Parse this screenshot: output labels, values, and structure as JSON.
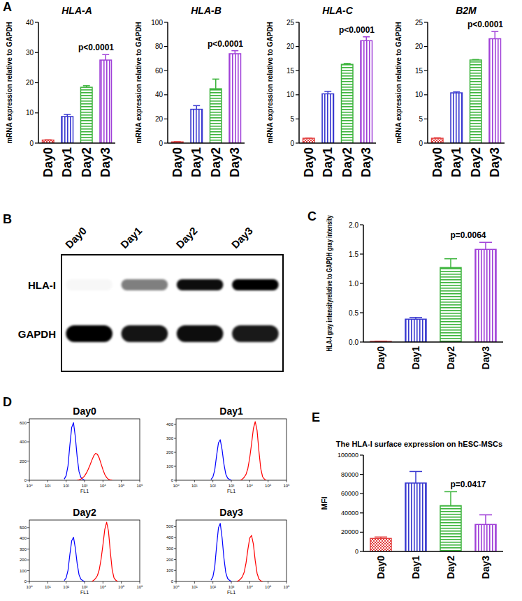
{
  "panel_labels": [
    "A",
    "B",
    "C",
    "D",
    "E"
  ],
  "blot": {
    "lanes": [
      "Day0",
      "Day1",
      "Day2",
      "Day3"
    ],
    "rows": [
      {
        "label": "HLA-I",
        "intensity": [
          0.03,
          0.5,
          0.95,
          1.0
        ]
      },
      {
        "label": "GAPDH",
        "intensity": [
          1.0,
          0.92,
          0.95,
          0.9
        ]
      }
    ]
  },
  "chart_data": [
    {
      "type": "bar",
      "title": "HLA-A",
      "ylabel": "mRNA expression relative to GAPDH",
      "categories": [
        "Day0",
        "Day1",
        "Day2",
        "Day3"
      ],
      "values": [
        1,
        8.8,
        18.5,
        27.5
      ],
      "errors": [
        0.1,
        0.7,
        0.5,
        1.8
      ],
      "colors": [
        "#e34040",
        "#3a3ad0",
        "#3cb43c",
        "#a040d8"
      ],
      "ylim": [
        0,
        40
      ],
      "yticks": [
        0,
        10,
        20,
        30,
        40
      ],
      "grid": false,
      "annotations": [
        "p<0.0001"
      ]
    },
    {
      "type": "bar",
      "title": "HLA-B",
      "ylabel": "mRNA expression relative to GAPDH",
      "categories": [
        "Day0",
        "Day1",
        "Day2",
        "Day3"
      ],
      "values": [
        1,
        28,
        45,
        74
      ],
      "errors": [
        0.2,
        3,
        8,
        2.5
      ],
      "colors": [
        "#e34040",
        "#3a3ad0",
        "#3cb43c",
        "#a040d8"
      ],
      "ylim": [
        0,
        100
      ],
      "yticks": [
        0,
        20,
        40,
        60,
        80,
        100
      ],
      "grid": false,
      "annotations": [
        "p<0.0001"
      ]
    },
    {
      "type": "bar",
      "title": "HLA-C",
      "ylabel": "mRNA expression relative to GAPDH",
      "categories": [
        "Day0",
        "Day1",
        "Day2",
        "Day3"
      ],
      "values": [
        1,
        10.2,
        16.3,
        21.2
      ],
      "errors": [
        0.05,
        0.5,
        0.2,
        0.8
      ],
      "colors": [
        "#e34040",
        "#3a3ad0",
        "#3cb43c",
        "#a040d8"
      ],
      "ylim": [
        0,
        25
      ],
      "yticks": [
        0,
        5,
        10,
        15,
        20,
        25
      ],
      "grid": false,
      "annotations": [
        "p<0.0001"
      ]
    },
    {
      "type": "bar",
      "title": "B2M",
      "ylabel": "mRNA expression relative to GAPDH",
      "categories": [
        "Day0",
        "Day1",
        "Day2",
        "Day3"
      ],
      "values": [
        1,
        10.4,
        17.2,
        21.6
      ],
      "errors": [
        0.1,
        0.2,
        0.1,
        1.5
      ],
      "colors": [
        "#e34040",
        "#3a3ad0",
        "#3cb43c",
        "#a040d8"
      ],
      "ylim": [
        0,
        25
      ],
      "yticks": [
        0,
        5,
        10,
        15,
        20,
        25
      ],
      "grid": false,
      "annotations": [
        "p<0.0001"
      ]
    },
    {
      "type": "bar",
      "ylabel": "HLA-I gray intensityrelative to GAPDH gray intensity",
      "categories": [
        "Day0",
        "Day1",
        "Day2",
        "Day3"
      ],
      "values": [
        0.01,
        0.39,
        1.27,
        1.58
      ],
      "errors": [
        0.005,
        0.03,
        0.15,
        0.12
      ],
      "colors": [
        "#e34040",
        "#3a3ad0",
        "#3cb43c",
        "#a040d8"
      ],
      "ylim": [
        0,
        2
      ],
      "yticks": [
        {
          "value": 0,
          "label": "0.0"
        },
        {
          "value": 0.5,
          "label": "0.5"
        },
        {
          "value": 1,
          "label": "1.0"
        },
        {
          "value": 1.5,
          "label": "1.5"
        },
        {
          "value": 2,
          "label": "2.0"
        }
      ],
      "grid": false,
      "annotations": [
        "p=0.0064"
      ]
    },
    {
      "type": "line",
      "title": "Day0",
      "xlabel": "FL1",
      "log": "x",
      "grid": false,
      "xlim": [
        1,
        1000000
      ],
      "xticks": [
        {
          "value": 1,
          "label": "10⁰"
        },
        {
          "value": 10,
          "label": "10¹"
        },
        {
          "value": 100,
          "label": "10²"
        },
        {
          "value": 1000,
          "label": "10³"
        },
        {
          "value": 10000,
          "label": "10⁴"
        },
        {
          "value": 100000,
          "label": "10⁵"
        },
        {
          "value": 1000000,
          "label": "10⁶"
        }
      ],
      "ylim": [
        0,
        640
      ],
      "yticks": [
        0,
        200,
        400,
        600
      ],
      "series": [
        {
          "color": "#0000ff",
          "x": [
            79,
            100,
            126,
            158,
            200,
            251,
            316,
            398,
            501,
            631,
            794,
            1000
          ],
          "values": [
            12,
            48,
            150,
            360,
            550,
            600,
            450,
            240,
            90,
            30,
            12,
            0
          ]
        },
        {
          "color": "#ff0000",
          "x": [
            398,
            501,
            631,
            794,
            1000,
            1259,
            1585,
            1995,
            2512,
            3162,
            3981,
            5012,
            6310,
            7943,
            10000,
            12589,
            15849,
            19953,
            25119,
            31623
          ],
          "values": [
            0,
            5,
            12,
            25,
            45,
            75,
            115,
            160,
            210,
            255,
            280,
            270,
            230,
            170,
            110,
            60,
            28,
            10,
            3,
            0
          ]
        }
      ]
    },
    {
      "type": "line",
      "title": "Day1",
      "xlabel": "FL1",
      "log": "x",
      "grid": false,
      "xlim": [
        1,
        1000000
      ],
      "xticks": [
        {
          "value": 1,
          "label": "10⁰"
        },
        {
          "value": 10,
          "label": "10¹"
        },
        {
          "value": 100,
          "label": "10²"
        },
        {
          "value": 1000,
          "label": "10³"
        },
        {
          "value": 10000,
          "label": "10⁴"
        },
        {
          "value": 100000,
          "label": "10⁵"
        },
        {
          "value": 1000000,
          "label": "10⁶"
        }
      ],
      "ylim": [
        0,
        440
      ],
      "yticks": [
        0,
        100,
        200,
        300,
        400
      ],
      "series": [
        {
          "color": "#0000ff",
          "x": [
            79,
            100,
            126,
            158,
            200,
            251,
            316,
            398,
            501,
            631,
            794,
            1000
          ],
          "values": [
            6,
            23,
            73,
            174,
            267,
            290,
            218,
            116,
            44,
            15,
            6,
            0
          ]
        },
        {
          "color": "#ff0000",
          "x": [
            3162,
            3981,
            5012,
            6310,
            7943,
            10000,
            12589,
            15849,
            19953,
            25119,
            31623,
            39811,
            50119,
            63096,
            79433
          ],
          "values": [
            0,
            8,
            21,
            42,
            84,
            160,
            260,
            370,
            420,
            357,
            210,
            84,
            25,
            8,
            0
          ]
        }
      ]
    },
    {
      "type": "line",
      "title": "Day2",
      "xlabel": "FL1",
      "log": "x",
      "grid": false,
      "xlim": [
        1,
        1000000
      ],
      "xticks": [
        {
          "value": 1,
          "label": "10⁰"
        },
        {
          "value": 10,
          "label": "10¹"
        },
        {
          "value": 100,
          "label": "10²"
        },
        {
          "value": 1000,
          "label": "10³"
        },
        {
          "value": 10000,
          "label": "10⁴"
        },
        {
          "value": 100000,
          "label": "10⁵"
        },
        {
          "value": 1000000,
          "label": "10⁶"
        }
      ],
      "ylim": [
        0,
        570
      ],
      "yticks": [
        0,
        100,
        200,
        300,
        400,
        500
      ],
      "series": [
        {
          "color": "#0000ff",
          "x": [
            79,
            100,
            126,
            158,
            200,
            251,
            316,
            398,
            501,
            631,
            794,
            1000
          ],
          "values": [
            8,
            33,
            103,
            246,
            377,
            410,
            308,
            164,
            62,
            21,
            8,
            0
          ]
        },
        {
          "color": "#ff0000",
          "x": [
            2512,
            3162,
            3981,
            5012,
            6310,
            7943,
            10000,
            12589,
            15849,
            19953,
            25119,
            31623,
            39811,
            50119,
            63096
          ],
          "values": [
            0,
            11,
            28,
            55,
            110,
            209,
            341,
            484,
            550,
            468,
            275,
            110,
            33,
            11,
            0
          ]
        }
      ]
    },
    {
      "type": "line",
      "title": "Day3",
      "xlabel": "FL1",
      "log": "x",
      "grid": false,
      "xlim": [
        1,
        1000000
      ],
      "xticks": [
        {
          "value": 1,
          "label": "10⁰"
        },
        {
          "value": 10,
          "label": "10¹"
        },
        {
          "value": 100,
          "label": "10²"
        },
        {
          "value": 1000,
          "label": "10³"
        },
        {
          "value": 10000,
          "label": "10⁴"
        },
        {
          "value": 100000,
          "label": "10⁵"
        },
        {
          "value": 1000000,
          "label": "10⁶"
        }
      ],
      "ylim": [
        0,
        560
      ],
      "yticks": [
        0,
        100,
        200,
        300,
        400,
        500
      ],
      "series": [
        {
          "color": "#0000ff",
          "x": [
            79,
            100,
            126,
            158,
            200,
            251,
            316,
            398,
            501,
            631,
            794,
            1000
          ],
          "values": [
            11,
            42,
            133,
            318,
            488,
            530,
            398,
            212,
            80,
            27,
            11,
            0
          ]
        },
        {
          "color": "#ff0000",
          "x": [
            1995,
            2512,
            3162,
            3981,
            5012,
            6310,
            7943,
            10000,
            12589,
            15849,
            19953,
            25119,
            31623,
            39811,
            50119
          ],
          "values": [
            0,
            8,
            21,
            42,
            84,
            168,
            290,
            395,
            420,
            340,
            190,
            75,
            22,
            6,
            0
          ]
        }
      ]
    },
    {
      "type": "bar",
      "title": "The HLA-I surface expression on hESC-MSCs",
      "ylabel": "MFI",
      "categories": [
        "Day0",
        "Day1",
        "Day2",
        "Day3"
      ],
      "values": [
        13500,
        71000,
        47500,
        28000
      ],
      "errors": [
        1500,
        12000,
        14500,
        10000
      ],
      "colors": [
        "#e34040",
        "#3a3ad0",
        "#3cb43c",
        "#a040d8"
      ],
      "ylim": [
        0,
        100000
      ],
      "yticks": [
        0,
        20000,
        40000,
        60000,
        80000,
        100000
      ],
      "grid": false,
      "annotations": [
        "p=0.0417"
      ]
    }
  ]
}
